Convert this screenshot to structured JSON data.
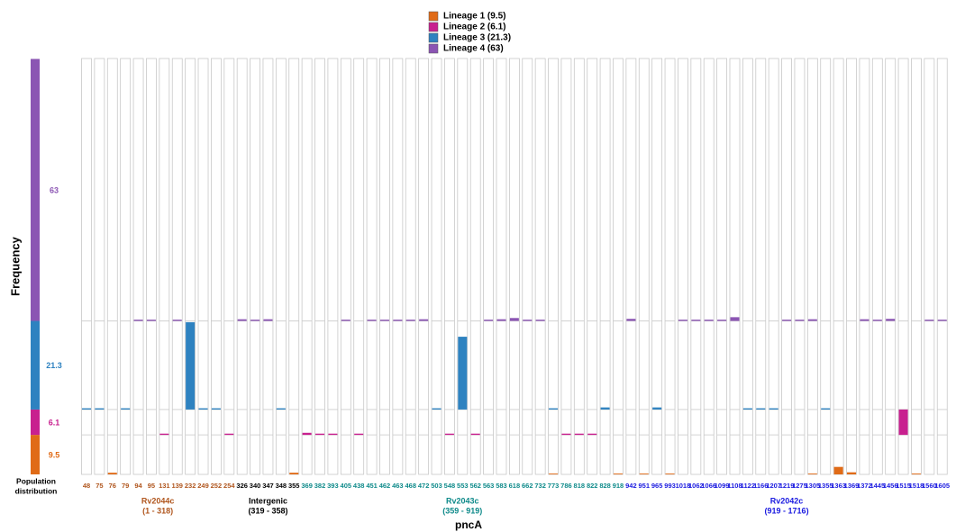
{
  "chart_data": {
    "type": "stacked-frequency",
    "y_label": "Frequency",
    "x_label": "pncA",
    "population_label": [
      "Population",
      "distribution"
    ],
    "ylim": [
      0,
      100
    ],
    "categories": [
      "48",
      "75",
      "76",
      "79",
      "94",
      "95",
      "131",
      "139",
      "232",
      "249",
      "252",
      "254",
      "326",
      "340",
      "347",
      "348",
      "355",
      "369",
      "382",
      "393",
      "405",
      "438",
      "451",
      "462",
      "463",
      "468",
      "472",
      "503",
      "548",
      "553",
      "562",
      "563",
      "583",
      "618",
      "662",
      "732",
      "773",
      "786",
      "818",
      "822",
      "828",
      "918",
      "942",
      "951",
      "965",
      "993",
      "1018",
      "1062",
      "1066",
      "1099",
      "1108",
      "1122",
      "1166",
      "1207",
      "1219",
      "1275",
      "1305",
      "1355",
      "1363",
      "1369",
      "1372",
      "1445",
      "1456",
      "1515",
      "1518",
      "1560",
      "1605"
    ],
    "series": [
      {
        "name": "Lineage 1 (9.5)",
        "population": 9.5,
        "color": "#e06b17",
        "values": [
          0,
          0,
          0.4,
          0,
          0,
          0,
          0,
          0,
          0,
          0,
          0,
          0,
          0,
          0,
          0,
          0,
          0.4,
          0,
          0,
          0,
          0,
          0,
          0,
          0,
          0,
          0,
          0,
          0,
          0,
          0,
          0,
          0,
          0,
          0,
          0,
          0,
          0.2,
          0,
          0,
          0,
          0,
          0.2,
          0,
          0.2,
          0,
          0.2,
          0,
          0,
          0,
          0,
          0,
          0,
          0,
          0,
          0,
          0,
          0.2,
          0,
          1.8,
          0.5,
          0,
          0,
          0,
          0,
          0.2,
          0,
          0
        ]
      },
      {
        "name": "Lineage 2 (6.1)",
        "population": 6.1,
        "color": "#c8208f",
        "values": [
          0,
          0,
          0,
          0,
          0,
          0,
          0.3,
          0,
          0,
          0,
          0,
          0.3,
          0,
          0,
          0,
          0,
          0,
          0.5,
          0.3,
          0.3,
          0,
          0.3,
          0,
          0,
          0,
          0,
          0,
          0,
          0.3,
          0,
          0.3,
          0,
          0,
          0,
          0,
          0,
          0,
          0.3,
          0.3,
          0.3,
          0,
          0,
          0,
          0,
          0,
          0,
          0,
          0,
          0,
          0,
          0,
          0,
          0,
          0,
          0,
          0,
          0,
          0,
          0,
          0,
          0,
          0,
          0,
          6.1,
          0,
          0,
          0
        ]
      },
      {
        "name": "Lineage 3 (21.3)",
        "population": 21.3,
        "color": "#2e82c0",
        "values": [
          0.3,
          0.3,
          0,
          0.3,
          0,
          0,
          0,
          0,
          21,
          0.3,
          0.3,
          0,
          0,
          0,
          0,
          0.3,
          0,
          0,
          0,
          0,
          0,
          0,
          0,
          0,
          0,
          0,
          0,
          0.3,
          0,
          17.5,
          0,
          0,
          0,
          0,
          0,
          0,
          0.3,
          0,
          0,
          0,
          0.5,
          0,
          0,
          0,
          0.5,
          0,
          0,
          0,
          0,
          0,
          0,
          0.3,
          0.3,
          0.3,
          0,
          0,
          0,
          0.3,
          0,
          0,
          0,
          0,
          0,
          0,
          0,
          0,
          0
        ]
      },
      {
        "name": "Lineage 4 (63)",
        "population": 63,
        "color": "#8b55b3",
        "values": [
          0,
          0,
          0,
          0,
          0.3,
          0.3,
          0,
          0.3,
          0,
          0,
          0,
          0,
          0.4,
          0.3,
          0.4,
          0,
          0,
          0,
          0,
          0,
          0.3,
          0,
          0.3,
          0.3,
          0.3,
          0.3,
          0.4,
          0,
          0,
          0,
          0,
          0.3,
          0.4,
          0.7,
          0.3,
          0.3,
          0,
          0,
          0,
          0,
          0,
          0,
          0.5,
          0,
          0,
          0,
          0.3,
          0.3,
          0.3,
          0.3,
          0.9,
          0,
          0,
          0,
          0.3,
          0.3,
          0.4,
          0,
          0,
          0,
          0.4,
          0.3,
          0.5,
          0,
          0,
          0.3,
          0.3
        ]
      }
    ],
    "regions": [
      {
        "name": "Rv2044c",
        "label": "(1 - 318)",
        "start": 1,
        "end": 318,
        "color": "#b0561e"
      },
      {
        "name": "Intergenic",
        "label": "(319 - 358)",
        "start": 319,
        "end": 358,
        "color": "#000000"
      },
      {
        "name": "Rv2043c",
        "label": "(359 - 919)",
        "start": 359,
        "end": 919,
        "color": "#0e8a8a"
      },
      {
        "name": "Rv2042c",
        "label": "(919 - 1716)",
        "start": 919,
        "end": 1716,
        "color": "#1a1ae0"
      }
    ]
  }
}
